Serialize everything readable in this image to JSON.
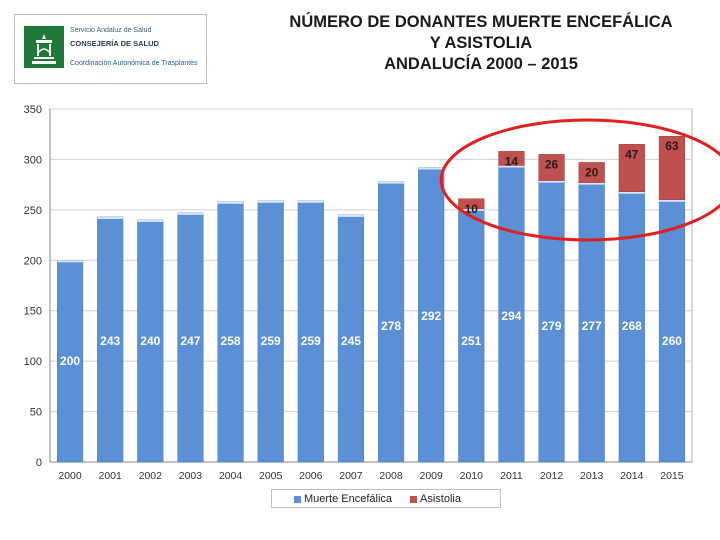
{
  "logo": {
    "line1": "Servicio Andaluz de Salud",
    "line2": "CONSEJERÍA DE SALUD",
    "line3": "Coordinación Autonómica de Trasplantes"
  },
  "title_lines": [
    "NÚMERO DE DONANTES MUERTE ENCEFÁLICA",
    "Y ASISTOLIA",
    "ANDALUCÍA 2000 – 2015"
  ],
  "colors": {
    "muerte": "#5b8fd6",
    "asistolia": "#c0504d",
    "grid": "#d0d0d0",
    "highlight": "#e02020"
  },
  "chart_data": {
    "type": "bar",
    "stacked": true,
    "title": "NÚMERO DE DONANTES MUERTE ENCEFÁLICA Y ASISTOLIA ANDALUCÍA 2000 – 2015",
    "categories": [
      "2000",
      "2001",
      "2002",
      "2003",
      "2004",
      "2005",
      "2006",
      "2007",
      "2008",
      "2009",
      "2010",
      "2011",
      "2012",
      "2013",
      "2014",
      "2015"
    ],
    "series": [
      {
        "name": "Muerte Encefálica",
        "values": [
          200,
          243,
          240,
          247,
          258,
          259,
          259,
          245,
          278,
          292,
          251,
          294,
          279,
          277,
          268,
          260
        ]
      },
      {
        "name": "Asistolia",
        "values": [
          0,
          0,
          0,
          0,
          0,
          0,
          0,
          0,
          0,
          0,
          10,
          14,
          26,
          20,
          47,
          63
        ]
      }
    ],
    "ylim": [
      0,
      350
    ],
    "yticks": [
      0,
      50,
      100,
      150,
      200,
      250,
      300,
      350
    ],
    "grid": true,
    "legend": "bottom",
    "annotation": "red ellipse highlighting Asistolia values 2010–2015"
  }
}
